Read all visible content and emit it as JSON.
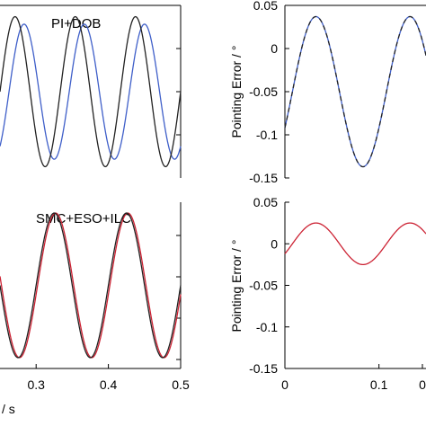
{
  "chart_data": [
    {
      "type": "line",
      "panel": "top-left",
      "annotation": "PI+DOB",
      "xlim": [
        0.2,
        0.5
      ],
      "ylim": [
        -1.15,
        1.15
      ],
      "x_ticks": [],
      "y_ticks": [],
      "series": [
        {
          "color": "#3f5fc9",
          "amplitude": 0.9,
          "frequency_hz": 10,
          "peak_at": 0.34
        },
        {
          "color": "#222222",
          "amplitude": 1.0,
          "frequency_hz": 10,
          "peak_at": 0.325
        }
      ]
    },
    {
      "type": "line",
      "panel": "top-right",
      "ylabel": "Pointing Error / °",
      "xlim": [
        0,
        0.15
      ],
      "ylim": [
        -0.15,
        0.05
      ],
      "y_ticks": [
        "0.05",
        "0",
        "-0.05",
        "-0.1",
        "-0.15"
      ],
      "x_ticks": [],
      "series": [
        {
          "color": "#3f5fc9",
          "center": -0.05,
          "amplitude": 0.087,
          "frequency_hz": 10,
          "peak_at": 0.033
        },
        {
          "color": "#222222",
          "center": -0.05,
          "amplitude": 0.087,
          "frequency_hz": 10,
          "peak_at": 0.033
        }
      ]
    },
    {
      "type": "line",
      "panel": "bottom-left",
      "annotation": "SMC+ESO+ILC",
      "xlabel": "/ s",
      "xlim": [
        0.25,
        0.5
      ],
      "ylim": [
        -1.15,
        1.15
      ],
      "x_ticks": [
        "0.3",
        "0.4",
        "0.5"
      ],
      "y_ticks": [],
      "series": [
        {
          "color": "#cc2233",
          "amplitude": 1.0,
          "frequency_hz": 10,
          "peak_at": 0.327
        },
        {
          "color": "#222222",
          "amplitude": 1.0,
          "frequency_hz": 10,
          "peak_at": 0.325
        }
      ]
    },
    {
      "type": "line",
      "panel": "bottom-right",
      "ylabel": "Pointing Error / °",
      "xlim": [
        0,
        0.15
      ],
      "ylim": [
        -0.15,
        0.05
      ],
      "y_ticks": [
        "0.05",
        "0",
        "-0.05",
        "-0.1",
        "-0.15"
      ],
      "x_ticks": [
        "0",
        "0.1",
        "0"
      ],
      "series": [
        {
          "color": "#cc2233",
          "center": 0.0,
          "amplitude": 0.025,
          "frequency_hz": 10,
          "peak_at": 0.033
        }
      ]
    }
  ]
}
